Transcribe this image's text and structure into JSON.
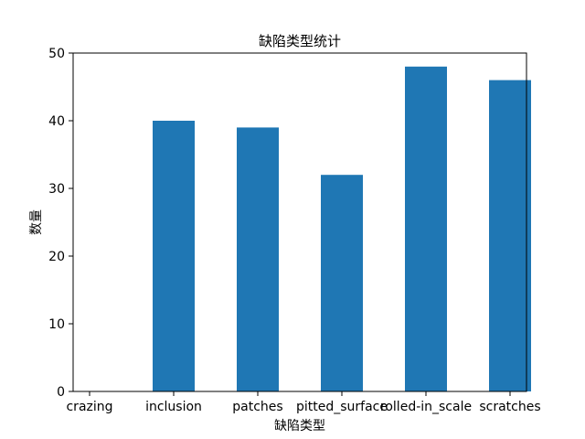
{
  "chart_data": {
    "type": "bar",
    "title": "缺陷类型统计",
    "xlabel": "缺陷类型",
    "ylabel": "数量",
    "categories": [
      "crazing",
      "inclusion",
      "patches",
      "pitted_surface",
      "rolled-in_scale",
      "scratches"
    ],
    "values": [
      0,
      40,
      39,
      32,
      48,
      46
    ],
    "ylim": [
      0,
      50
    ],
    "yticks": [
      0,
      10,
      20,
      30,
      40,
      50
    ],
    "grid": false,
    "legend": "none",
    "bar_color": "#1f77b4"
  }
}
